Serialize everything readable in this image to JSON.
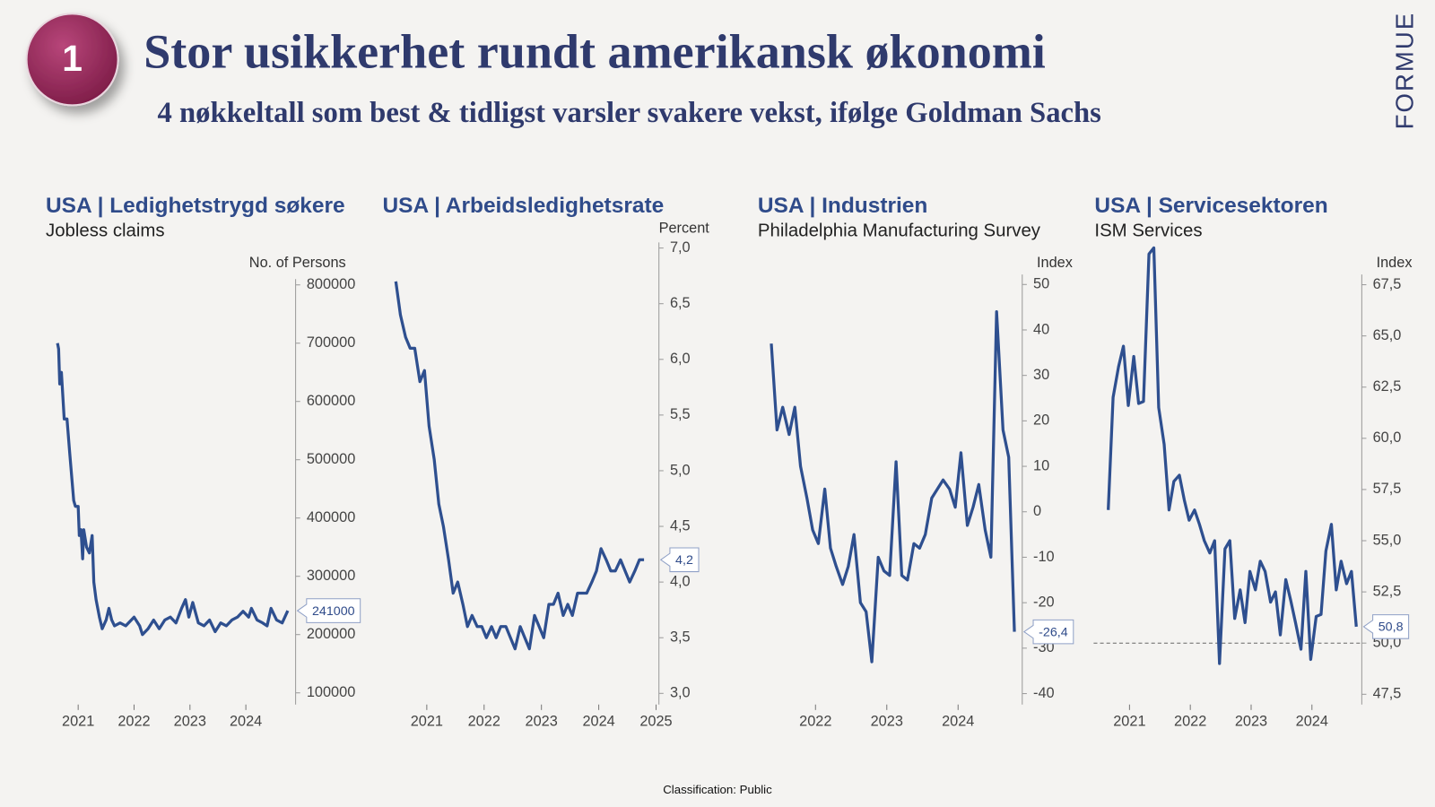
{
  "header": {
    "badge": "1",
    "title": "Stor usikkerhet rundt amerikansk økonomi",
    "subtitle": "4 nøkkeltall som best & tidligst varsler svakere vekst, ifølge Goldman Sachs"
  },
  "logo": "FORMUE",
  "footer": "Classification: Public",
  "chart_data": [
    {
      "type": "line",
      "title": "USA | Ledighetstrygd søkere",
      "subtitle": "Jobless claims",
      "y_label": "No. of Persons",
      "yaxis_position": "right",
      "color": "#2e4f8f",
      "x": [
        2021.13,
        2021.15,
        2021.17,
        2021.2,
        2021.25,
        2021.3,
        2021.35,
        2021.42,
        2021.45,
        2021.5,
        2021.52,
        2021.55,
        2021.58,
        2021.6,
        2021.65,
        2021.7,
        2021.75,
        2021.78,
        2021.82,
        2021.88,
        2021.93,
        2022.0,
        2022.05,
        2022.1,
        2022.15,
        2022.25,
        2022.35,
        2022.45,
        2022.5,
        2022.6,
        2022.65,
        2022.75,
        2022.85,
        2022.95,
        2023.05,
        2023.15,
        2023.25,
        2023.35,
        2023.42,
        2023.48,
        2023.55,
        2023.65,
        2023.75,
        2023.85,
        2023.95,
        2024.05,
        2024.15,
        2024.25,
        2024.35,
        2024.45,
        2024.55,
        2024.6,
        2024.7,
        2024.8,
        2024.88,
        2024.95,
        2025.05,
        2025.15,
        2025.25
      ],
      "values": [
        700000,
        690000,
        630000,
        650000,
        570000,
        570000,
        510000,
        430000,
        420000,
        420000,
        370000,
        380000,
        330000,
        380000,
        350000,
        340000,
        370000,
        290000,
        260000,
        230000,
        210000,
        225000,
        245000,
        225000,
        215000,
        220000,
        215000,
        225000,
        230000,
        215000,
        200000,
        210000,
        225000,
        210000,
        225000,
        230000,
        220000,
        245000,
        260000,
        230000,
        255000,
        220000,
        215000,
        225000,
        205000,
        220000,
        215000,
        225000,
        230000,
        240000,
        230000,
        245000,
        225000,
        220000,
        215000,
        245000,
        225000,
        220000,
        241000
      ],
      "xlim": [
        2020.92,
        2025.39
      ],
      "ylim": [
        80000,
        810000
      ],
      "xticks": [
        {
          "value": 2021.5,
          "label": "2021"
        },
        {
          "value": 2022.5,
          "label": "2022"
        },
        {
          "value": 2023.5,
          "label": "2023"
        },
        {
          "value": 2024.5,
          "label": "2024"
        }
      ],
      "yticks": [
        100000,
        200000,
        300000,
        400000,
        500000,
        600000,
        700000,
        800000
      ]
    },
    {
      "type": "line",
      "title": "USA | Arbeidsledighetsrate",
      "y_label": "Percent",
      "yaxis_position": "right",
      "color": "#2e4f8f",
      "x": [
        2020.96,
        2021.04,
        2021.13,
        2021.21,
        2021.29,
        2021.38,
        2021.46,
        2021.54,
        2021.63,
        2021.71,
        2021.79,
        2021.88,
        2021.96,
        2022.04,
        2022.13,
        2022.21,
        2022.29,
        2022.38,
        2022.46,
        2022.54,
        2022.63,
        2022.71,
        2022.79,
        2022.88,
        2022.96,
        2023.04,
        2023.13,
        2023.21,
        2023.29,
        2023.38,
        2023.46,
        2023.54,
        2023.63,
        2023.71,
        2023.79,
        2023.88,
        2023.96,
        2024.04,
        2024.13,
        2024.21,
        2024.29,
        2024.38,
        2024.46,
        2024.54,
        2024.63,
        2024.71,
        2024.79,
        2024.88,
        2024.96,
        2025.04,
        2025.13,
        2025.21,
        2025.29
      ],
      "values": [
        6.7,
        6.4,
        6.2,
        6.1,
        6.1,
        5.8,
        5.9,
        5.4,
        5.1,
        4.7,
        4.5,
        4.2,
        3.9,
        4.0,
        3.8,
        3.6,
        3.7,
        3.6,
        3.6,
        3.5,
        3.6,
        3.5,
        3.6,
        3.6,
        3.5,
        3.4,
        3.6,
        3.5,
        3.4,
        3.7,
        3.6,
        3.5,
        3.8,
        3.8,
        3.9,
        3.7,
        3.8,
        3.7,
        3.9,
        3.9,
        3.9,
        4.0,
        4.1,
        4.3,
        4.2,
        4.1,
        4.1,
        4.2,
        4.1,
        4.0,
        4.1,
        4.2,
        4.2
      ],
      "value_labels": [
        null,
        null,
        null,
        null,
        null,
        null,
        null,
        null,
        null,
        null,
        null,
        null,
        null,
        null,
        null,
        null,
        null,
        null,
        null,
        null,
        null,
        null,
        null,
        null,
        null,
        null,
        null,
        null,
        null,
        null,
        null,
        null,
        null,
        null,
        null,
        null,
        null,
        null,
        null,
        null,
        null,
        null,
        null,
        null,
        null,
        null,
        null,
        null,
        null,
        null,
        null,
        null,
        "4,2"
      ],
      "xlim": [
        2020.84,
        2025.55
      ],
      "ylim": [
        2.9,
        7.05
      ],
      "xticks": [
        {
          "value": 2021.5,
          "label": "2021"
        },
        {
          "value": 2022.5,
          "label": "2022"
        },
        {
          "value": 2023.5,
          "label": "2023"
        },
        {
          "value": 2024.5,
          "label": "2024"
        },
        {
          "value": 2025.5,
          "label": "2025"
        }
      ],
      "yticks": [
        {
          "value": 3.0,
          "label": "3,0"
        },
        {
          "value": 3.5,
          "label": "3,5"
        },
        {
          "value": 4.0,
          "label": "4,0"
        },
        {
          "value": 4.5,
          "label": "4,5"
        },
        {
          "value": 5.0,
          "label": "5,0"
        },
        {
          "value": 5.5,
          "label": "5,5"
        },
        {
          "value": 6.0,
          "label": "6,0"
        },
        {
          "value": 6.5,
          "label": "6,5"
        },
        {
          "value": 7.0,
          "label": "7,0"
        }
      ]
    },
    {
      "type": "line",
      "title": "USA | Industrien",
      "subtitle": "Philadelphia Manufacturing Survey",
      "y_label": "Index",
      "yaxis_position": "right",
      "color": "#2e4f8f",
      "x": [
        2021.88,
        2021.96,
        2022.04,
        2022.13,
        2022.21,
        2022.29,
        2022.38,
        2022.46,
        2022.54,
        2022.63,
        2022.71,
        2022.79,
        2022.88,
        2022.96,
        2023.04,
        2023.13,
        2023.21,
        2023.29,
        2023.38,
        2023.46,
        2023.54,
        2023.63,
        2023.71,
        2023.79,
        2023.88,
        2023.96,
        2024.04,
        2024.13,
        2024.21,
        2024.29,
        2024.38,
        2024.46,
        2024.54,
        2024.63,
        2024.71,
        2024.79,
        2024.88,
        2024.96,
        2025.04,
        2025.13,
        2025.21,
        2025.29
      ],
      "values": [
        37,
        18,
        23,
        17,
        23,
        10,
        3,
        -4,
        -7,
        5,
        -8,
        -12,
        -16,
        -12,
        -5,
        -20,
        -22,
        -33,
        -10,
        -13,
        -14,
        11,
        -14,
        -15,
        -7,
        -8,
        -5,
        3,
        5,
        7,
        5,
        1,
        13,
        -3,
        1,
        6,
        -4,
        -10,
        44,
        18,
        12,
        -26.4
      ],
      "value_labels": [
        null,
        null,
        null,
        null,
        null,
        null,
        null,
        null,
        null,
        null,
        null,
        null,
        null,
        null,
        null,
        null,
        null,
        null,
        null,
        null,
        null,
        null,
        null,
        null,
        null,
        null,
        null,
        null,
        null,
        null,
        null,
        null,
        null,
        null,
        null,
        null,
        null,
        null,
        null,
        null,
        null,
        "-26,4"
      ],
      "xlim": [
        2021.78,
        2025.4
      ],
      "ylim": [
        -42.4,
        52.2
      ],
      "xticks": [
        {
          "value": 2022.5,
          "label": "2022"
        },
        {
          "value": 2023.5,
          "label": "2023"
        },
        {
          "value": 2024.5,
          "label": "2024"
        }
      ],
      "yticks": [
        -40,
        -30,
        -20,
        -10,
        0,
        10,
        20,
        30,
        40,
        50
      ]
    },
    {
      "type": "line",
      "title": "USA | Servicesektoren",
      "subtitle": "ISM Services",
      "y_label": "Index",
      "yaxis_position": "right",
      "color": "#2e4f8f",
      "reference_line": 50,
      "x": [
        2021.15,
        2021.23,
        2021.32,
        2021.4,
        2021.48,
        2021.57,
        2021.65,
        2021.73,
        2021.82,
        2021.9,
        2021.98,
        2022.07,
        2022.15,
        2022.23,
        2022.32,
        2022.4,
        2022.48,
        2022.57,
        2022.65,
        2022.73,
        2022.82,
        2022.9,
        2022.98,
        2023.07,
        2023.15,
        2023.23,
        2023.32,
        2023.4,
        2023.48,
        2023.57,
        2023.65,
        2023.73,
        2023.82,
        2023.9,
        2023.98,
        2024.07,
        2024.15,
        2024.23,
        2024.32,
        2024.4,
        2024.48,
        2024.57,
        2024.65,
        2024.73,
        2024.82,
        2024.9,
        2024.98,
        2025.07,
        2025.15,
        2025.23
      ],
      "values": [
        56.5,
        62,
        63.5,
        64.5,
        61.6,
        64,
        61.7,
        61.8,
        69,
        69.3,
        61.5,
        59.7,
        56.5,
        57.9,
        58.2,
        57,
        56,
        56.5,
        55.8,
        55.0,
        54.4,
        55.0,
        49.0,
        54.6,
        55.0,
        51.2,
        52.6,
        51.0,
        53.5,
        52.6,
        54.0,
        53.5,
        52.0,
        52.5,
        50.4,
        53.1,
        52.1,
        51.0,
        49.7,
        53.5,
        49.2,
        51.3,
        51.4,
        54.5,
        55.8,
        52.6,
        54.0,
        52.9,
        53.5,
        50.8
      ],
      "value_labels": [
        null,
        null,
        null,
        null,
        null,
        null,
        null,
        null,
        null,
        null,
        null,
        null,
        null,
        null,
        null,
        null,
        null,
        null,
        null,
        null,
        null,
        null,
        null,
        null,
        null,
        null,
        null,
        null,
        null,
        null,
        null,
        null,
        null,
        null,
        null,
        null,
        null,
        null,
        null,
        null,
        null,
        null,
        null,
        null,
        null,
        null,
        null,
        null,
        null,
        "50,8"
      ],
      "xlim": [
        2020.91,
        2025.32
      ],
      "ylim": [
        47,
        68
      ],
      "xticks": [
        {
          "value": 2021.5,
          "label": "2021"
        },
        {
          "value": 2022.5,
          "label": "2022"
        },
        {
          "value": 2023.5,
          "label": "2023"
        },
        {
          "value": 2024.5,
          "label": "2024"
        }
      ],
      "yticks": [
        {
          "value": 47.5,
          "label": "47,5"
        },
        {
          "value": 50.0,
          "label": "50,0"
        },
        {
          "value": 52.5,
          "label": "52,5"
        },
        {
          "value": 55.0,
          "label": "55,0"
        },
        {
          "value": 57.5,
          "label": "57,5"
        },
        {
          "value": 60.0,
          "label": "60,0"
        },
        {
          "value": 62.5,
          "label": "62,5"
        },
        {
          "value": 65.0,
          "label": "65,0"
        },
        {
          "value": 67.5,
          "label": "67,5"
        }
      ]
    }
  ]
}
